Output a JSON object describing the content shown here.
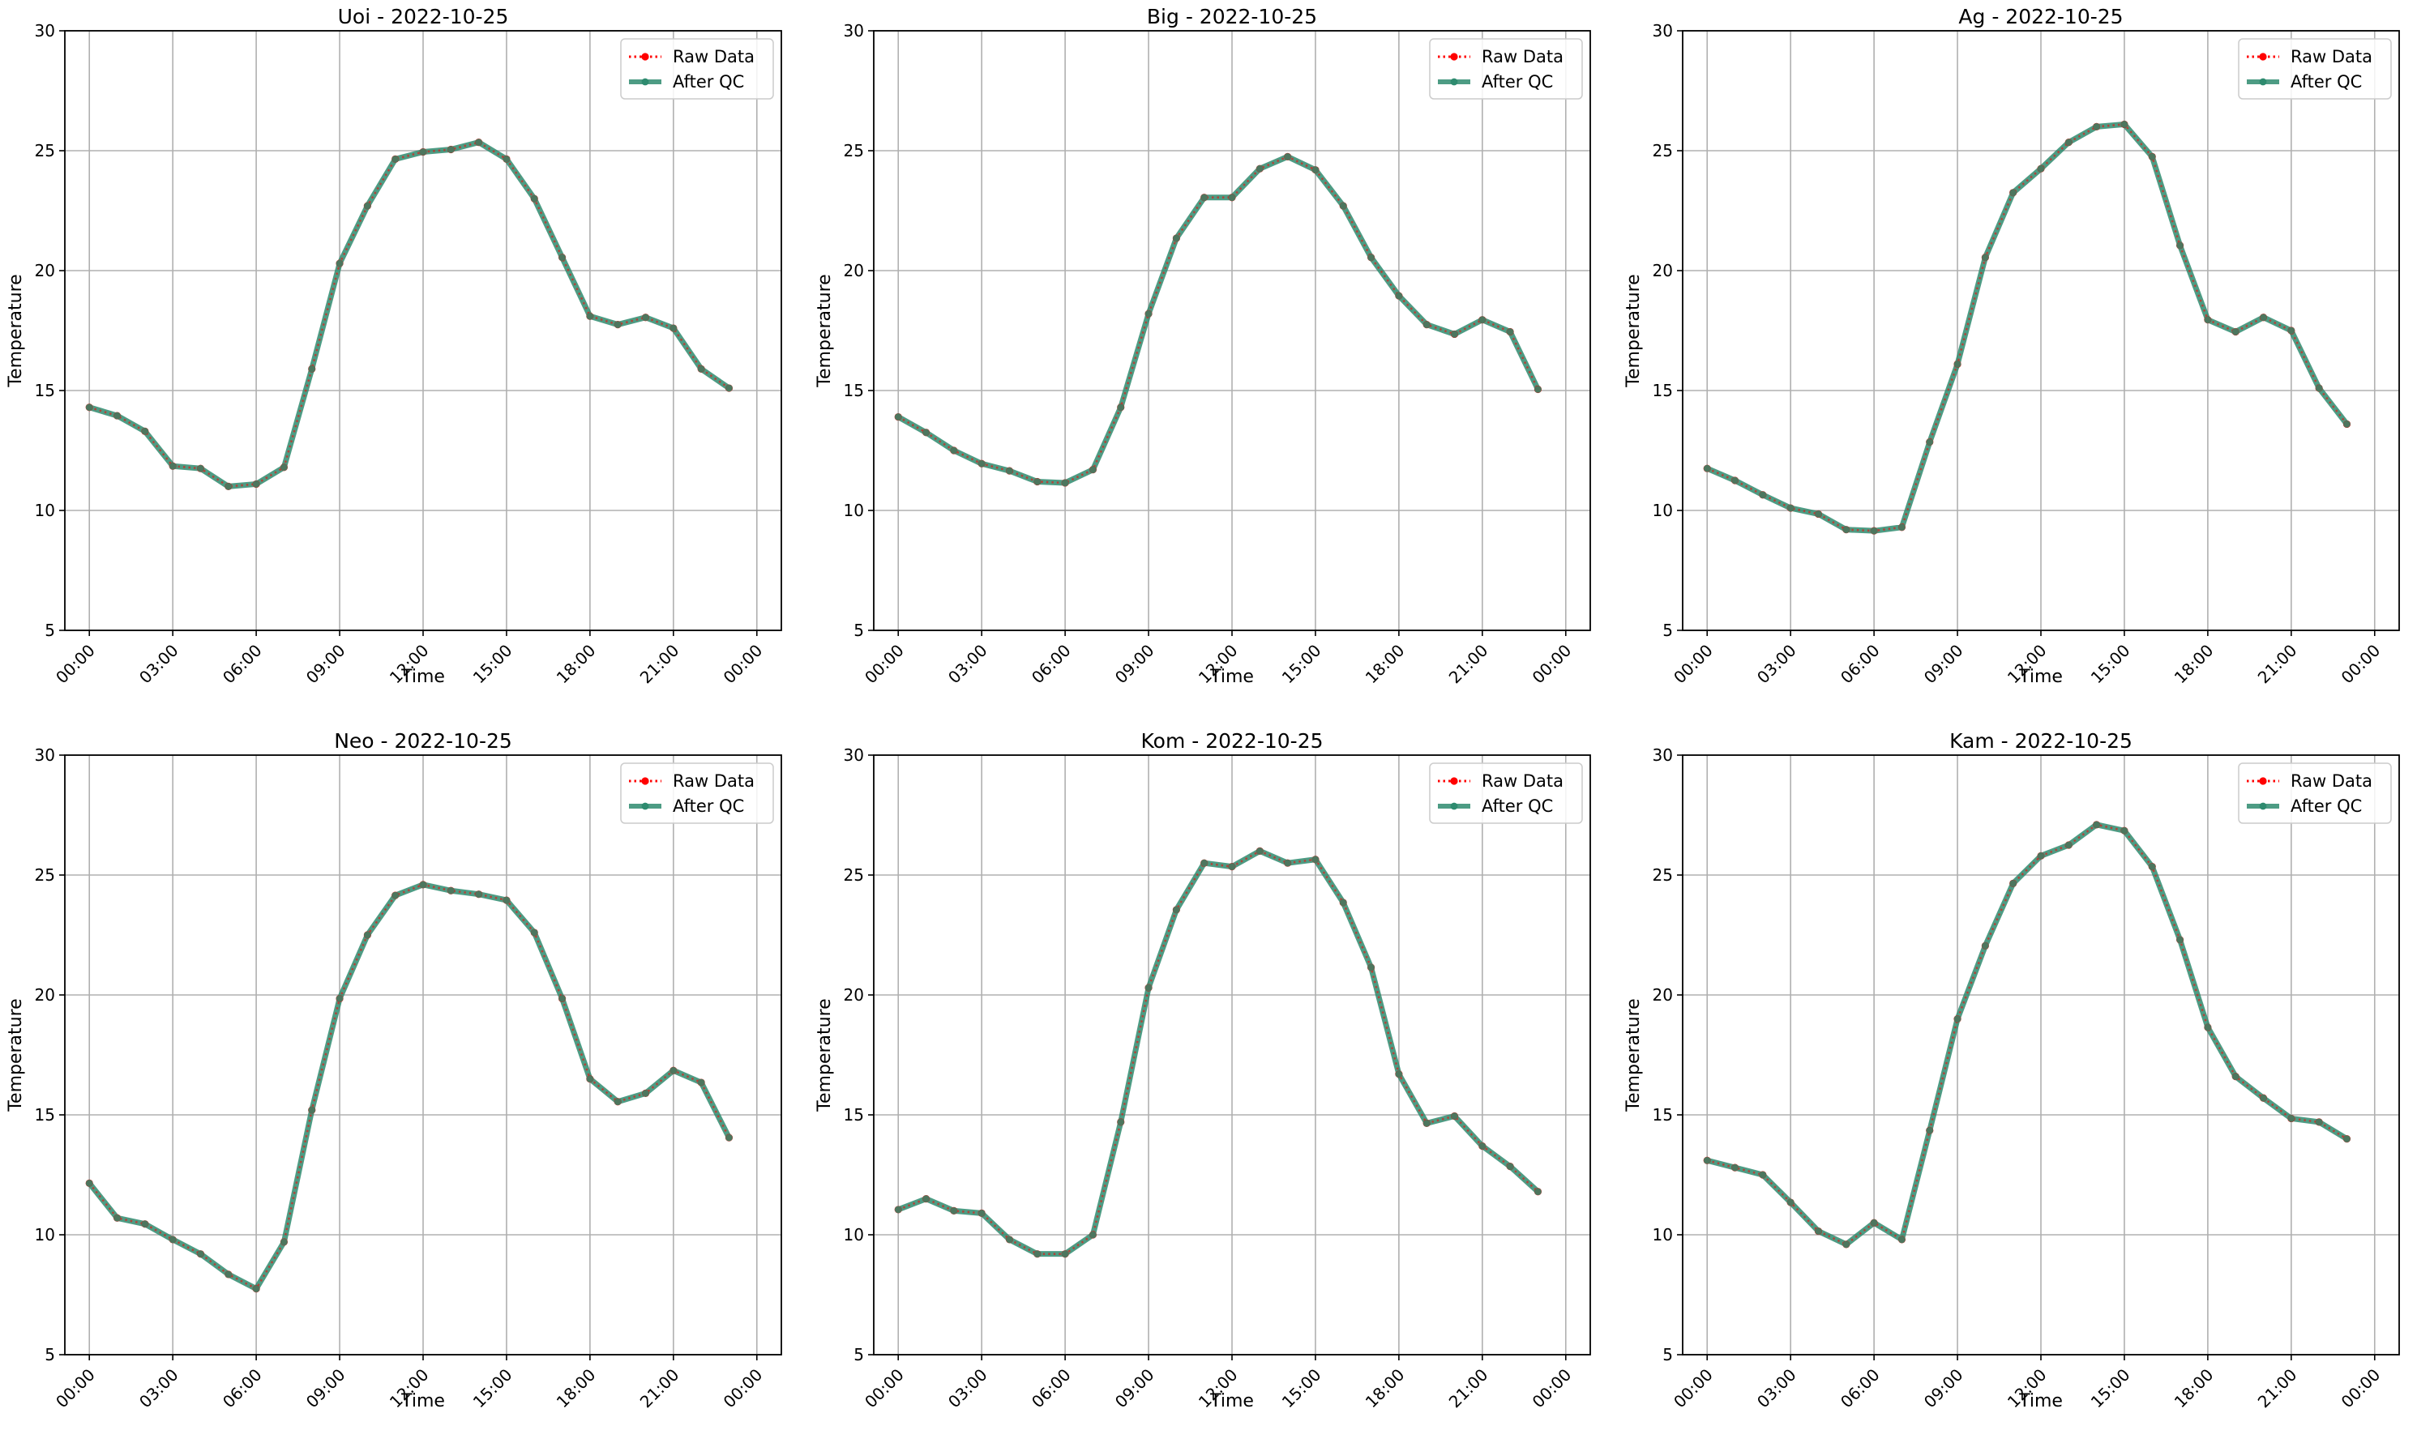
{
  "figure": {
    "background": "#ffffff"
  },
  "style": {
    "raw_color": "#ff0000",
    "qc_color": "#2e8b6f",
    "grid_color": "#b0b0b0",
    "axis_color": "#000000"
  },
  "chart_data": [
    {
      "type": "line",
      "title": "Uoi - 2022-10-25",
      "xlabel": "Time",
      "ylabel": "Temperature",
      "ylim": [
        5,
        30
      ],
      "xlim_hours": [
        0,
        24
      ],
      "yticks": [
        5,
        10,
        15,
        20,
        25,
        30
      ],
      "xtick_labels": [
        "00:00",
        "03:00",
        "06:00",
        "09:00",
        "12:00",
        "15:00",
        "18:00",
        "21:00",
        "00:00"
      ],
      "grid": true,
      "legend": "top-right",
      "x": [
        "00:00",
        "01:00",
        "02:00",
        "03:00",
        "04:00",
        "05:00",
        "06:00",
        "07:00",
        "08:00",
        "09:00",
        "10:00",
        "11:00",
        "12:00",
        "13:00",
        "14:00",
        "15:00",
        "16:00",
        "17:00",
        "18:00",
        "19:00",
        "20:00",
        "21:00",
        "22:00",
        "23:00"
      ],
      "series": [
        {
          "name": "Raw Data",
          "style": "dotted",
          "color": "#ff0000",
          "values": [
            14.3,
            13.95,
            13.3,
            11.85,
            11.75,
            11.0,
            11.1,
            11.8,
            15.9,
            20.3,
            22.7,
            24.65,
            24.95,
            25.05,
            25.35,
            24.65,
            23.0,
            20.55,
            18.1,
            17.75,
            18.05,
            17.6,
            15.9,
            15.1
          ]
        },
        {
          "name": "After QC",
          "style": "solid",
          "color": "#2e8b6f",
          "values": [
            14.3,
            13.95,
            13.3,
            11.85,
            11.75,
            11.0,
            11.1,
            11.8,
            15.9,
            20.3,
            22.7,
            24.65,
            24.95,
            25.05,
            25.35,
            24.65,
            23.0,
            20.55,
            18.1,
            17.75,
            18.05,
            17.6,
            15.9,
            15.1
          ]
        }
      ]
    },
    {
      "type": "line",
      "title": "Big - 2022-10-25",
      "xlabel": "Time",
      "ylabel": "Temperature",
      "ylim": [
        5,
        30
      ],
      "xlim_hours": [
        0,
        24
      ],
      "yticks": [
        5,
        10,
        15,
        20,
        25,
        30
      ],
      "xtick_labels": [
        "00:00",
        "03:00",
        "06:00",
        "09:00",
        "12:00",
        "15:00",
        "18:00",
        "21:00",
        "00:00"
      ],
      "grid": true,
      "legend": "top-right",
      "x": [
        "00:00",
        "01:00",
        "02:00",
        "03:00",
        "04:00",
        "05:00",
        "06:00",
        "07:00",
        "08:00",
        "09:00",
        "10:00",
        "11:00",
        "12:00",
        "13:00",
        "14:00",
        "15:00",
        "16:00",
        "17:00",
        "18:00",
        "19:00",
        "20:00",
        "21:00",
        "22:00",
        "23:00"
      ],
      "series": [
        {
          "name": "Raw Data",
          "style": "dotted",
          "color": "#ff0000",
          "values": [
            13.9,
            13.25,
            12.5,
            11.95,
            11.65,
            11.2,
            11.15,
            11.7,
            14.3,
            18.2,
            21.35,
            23.05,
            23.05,
            24.25,
            24.75,
            24.2,
            22.7,
            20.55,
            18.95,
            17.75,
            17.35,
            17.95,
            17.45,
            15.05
          ]
        },
        {
          "name": "After QC",
          "style": "solid",
          "color": "#2e8b6f",
          "values": [
            13.9,
            13.25,
            12.5,
            11.95,
            11.65,
            11.2,
            11.15,
            11.7,
            14.3,
            18.2,
            21.35,
            23.05,
            23.05,
            24.25,
            24.75,
            24.2,
            22.7,
            20.55,
            18.95,
            17.75,
            17.35,
            17.95,
            17.45,
            15.05
          ]
        }
      ]
    },
    {
      "type": "line",
      "title": "Ag - 2022-10-25",
      "xlabel": "Time",
      "ylabel": "Temperature",
      "ylim": [
        5,
        30
      ],
      "xlim_hours": [
        0,
        24
      ],
      "yticks": [
        5,
        10,
        15,
        20,
        25,
        30
      ],
      "xtick_labels": [
        "00:00",
        "03:00",
        "06:00",
        "09:00",
        "12:00",
        "15:00",
        "18:00",
        "21:00",
        "00:00"
      ],
      "grid": true,
      "legend": "top-right",
      "x": [
        "00:00",
        "01:00",
        "02:00",
        "03:00",
        "04:00",
        "05:00",
        "06:00",
        "07:00",
        "08:00",
        "09:00",
        "10:00",
        "11:00",
        "12:00",
        "13:00",
        "14:00",
        "15:00",
        "16:00",
        "17:00",
        "18:00",
        "19:00",
        "20:00",
        "21:00",
        "22:00",
        "23:00"
      ],
      "series": [
        {
          "name": "Raw Data",
          "style": "dotted",
          "color": "#ff0000",
          "values": [
            11.75,
            11.25,
            10.65,
            10.1,
            9.85,
            9.2,
            9.15,
            9.3,
            12.85,
            16.1,
            20.55,
            23.25,
            24.25,
            25.35,
            26.0,
            26.1,
            24.75,
            21.05,
            17.95,
            17.45,
            18.05,
            17.5,
            15.1,
            13.6
          ]
        },
        {
          "name": "After QC",
          "style": "solid",
          "color": "#2e8b6f",
          "values": [
            11.75,
            11.25,
            10.65,
            10.1,
            9.85,
            9.2,
            9.15,
            9.3,
            12.85,
            16.1,
            20.55,
            23.25,
            24.25,
            25.35,
            26.0,
            26.1,
            24.75,
            21.05,
            17.95,
            17.45,
            18.05,
            17.5,
            15.1,
            13.6
          ]
        }
      ]
    },
    {
      "type": "line",
      "title": "Neo - 2022-10-25",
      "xlabel": "Time",
      "ylabel": "Temperature",
      "ylim": [
        5,
        30
      ],
      "xlim_hours": [
        0,
        24
      ],
      "yticks": [
        5,
        10,
        15,
        20,
        25,
        30
      ],
      "xtick_labels": [
        "00:00",
        "03:00",
        "06:00",
        "09:00",
        "12:00",
        "15:00",
        "18:00",
        "21:00",
        "00:00"
      ],
      "grid": true,
      "legend": "top-right",
      "x": [
        "00:00",
        "01:00",
        "02:00",
        "03:00",
        "04:00",
        "05:00",
        "06:00",
        "07:00",
        "08:00",
        "09:00",
        "10:00",
        "11:00",
        "12:00",
        "13:00",
        "14:00",
        "15:00",
        "16:00",
        "17:00",
        "18:00",
        "19:00",
        "20:00",
        "21:00",
        "22:00",
        "23:00"
      ],
      "series": [
        {
          "name": "Raw Data",
          "style": "dotted",
          "color": "#ff0000",
          "values": [
            12.15,
            10.7,
            10.45,
            9.8,
            9.2,
            8.35,
            7.75,
            9.7,
            15.2,
            19.85,
            22.5,
            24.15,
            24.6,
            24.35,
            24.2,
            23.95,
            22.6,
            19.85,
            16.5,
            15.55,
            15.9,
            16.85,
            16.35,
            14.05
          ]
        },
        {
          "name": "After QC",
          "style": "solid",
          "color": "#2e8b6f",
          "values": [
            12.15,
            10.7,
            10.45,
            9.8,
            9.2,
            8.35,
            7.75,
            9.7,
            15.2,
            19.85,
            22.5,
            24.15,
            24.6,
            24.35,
            24.2,
            23.95,
            22.6,
            19.85,
            16.5,
            15.55,
            15.9,
            16.85,
            16.35,
            14.05
          ]
        }
      ]
    },
    {
      "type": "line",
      "title": "Kom - 2022-10-25",
      "xlabel": "Time",
      "ylabel": "Temperature",
      "ylim": [
        5,
        30
      ],
      "xlim_hours": [
        0,
        24
      ],
      "yticks": [
        5,
        10,
        15,
        20,
        25,
        30
      ],
      "xtick_labels": [
        "00:00",
        "03:00",
        "06:00",
        "09:00",
        "12:00",
        "15:00",
        "18:00",
        "21:00",
        "00:00"
      ],
      "grid": true,
      "legend": "top-right",
      "x": [
        "00:00",
        "01:00",
        "02:00",
        "03:00",
        "04:00",
        "05:00",
        "06:00",
        "07:00",
        "08:00",
        "09:00",
        "10:00",
        "11:00",
        "12:00",
        "13:00",
        "14:00",
        "15:00",
        "16:00",
        "17:00",
        "18:00",
        "19:00",
        "20:00",
        "21:00",
        "22:00",
        "23:00"
      ],
      "series": [
        {
          "name": "Raw Data",
          "style": "dotted",
          "color": "#ff0000",
          "values": [
            11.05,
            11.5,
            11.0,
            10.9,
            9.8,
            9.2,
            9.2,
            10.0,
            14.7,
            20.3,
            23.55,
            25.5,
            25.35,
            26.0,
            25.5,
            25.65,
            23.85,
            21.15,
            16.7,
            14.65,
            14.95,
            13.7,
            12.85,
            11.8
          ]
        },
        {
          "name": "After QC",
          "style": "solid",
          "color": "#2e8b6f",
          "values": [
            11.05,
            11.5,
            11.0,
            10.9,
            9.8,
            9.2,
            9.2,
            10.0,
            14.7,
            20.3,
            23.55,
            25.5,
            25.35,
            26.0,
            25.5,
            25.65,
            23.85,
            21.15,
            16.7,
            14.65,
            14.95,
            13.7,
            12.85,
            11.8
          ]
        }
      ]
    },
    {
      "type": "line",
      "title": "Kam - 2022-10-25",
      "xlabel": "Time",
      "ylabel": "Temperature",
      "ylim": [
        5,
        30
      ],
      "xlim_hours": [
        0,
        24
      ],
      "yticks": [
        5,
        10,
        15,
        20,
        25,
        30
      ],
      "xtick_labels": [
        "00:00",
        "03:00",
        "06:00",
        "09:00",
        "12:00",
        "15:00",
        "18:00",
        "21:00",
        "00:00"
      ],
      "grid": true,
      "legend": "top-right",
      "x": [
        "00:00",
        "01:00",
        "02:00",
        "03:00",
        "04:00",
        "05:00",
        "06:00",
        "07:00",
        "08:00",
        "09:00",
        "10:00",
        "11:00",
        "12:00",
        "13:00",
        "14:00",
        "15:00",
        "16:00",
        "17:00",
        "18:00",
        "19:00",
        "20:00",
        "21:00",
        "22:00",
        "23:00"
      ],
      "series": [
        {
          "name": "Raw Data",
          "style": "dotted",
          "color": "#ff0000",
          "values": [
            13.1,
            12.8,
            12.5,
            11.35,
            10.15,
            9.6,
            10.5,
            9.8,
            14.35,
            19.0,
            22.05,
            24.65,
            25.8,
            26.25,
            27.1,
            26.85,
            25.35,
            22.3,
            18.65,
            16.6,
            15.7,
            14.85,
            14.7,
            14.0
          ]
        },
        {
          "name": "After QC",
          "style": "solid",
          "color": "#2e8b6f",
          "values": [
            13.1,
            12.8,
            12.5,
            11.35,
            10.15,
            9.6,
            10.5,
            9.8,
            14.35,
            19.0,
            22.05,
            24.65,
            25.8,
            26.25,
            27.1,
            26.85,
            25.35,
            22.3,
            18.65,
            16.6,
            15.7,
            14.85,
            14.7,
            14.0
          ]
        }
      ]
    }
  ]
}
